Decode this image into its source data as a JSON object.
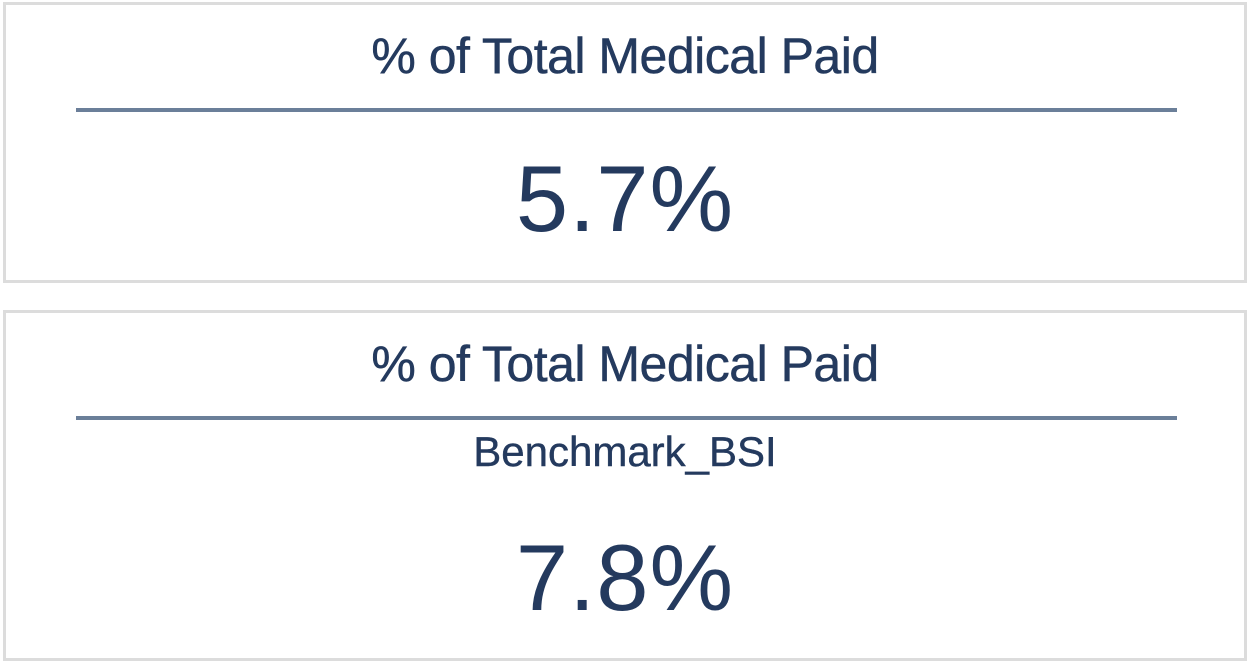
{
  "cards": [
    {
      "title": "% of Total Medical Paid",
      "subtitle": "",
      "value": "5.7%"
    },
    {
      "title": "% of Total Medical Paid",
      "subtitle": "Benchmark_BSI",
      "value": "7.8%"
    }
  ],
  "colors": {
    "text": "#243a5e",
    "divider": "#6b7f99",
    "border": "#dcdcdc",
    "background": "#ffffff"
  }
}
